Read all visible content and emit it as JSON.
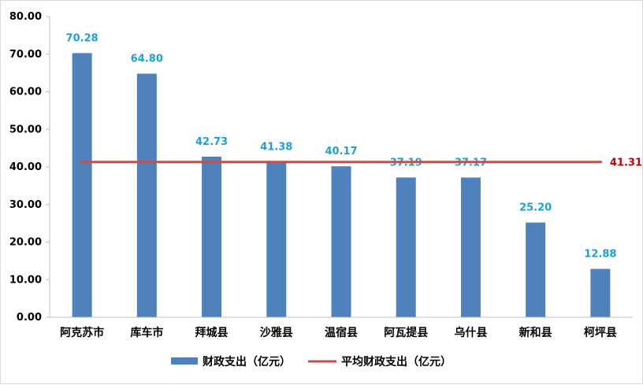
{
  "chart_data": {
    "type": "bar",
    "categories": [
      "阿克苏市",
      "库车市",
      "拜城县",
      "沙雅县",
      "温宿县",
      "阿瓦提县",
      "乌什县",
      "新和县",
      "柯坪县"
    ],
    "series": [
      {
        "name": "财政支出（亿元）",
        "type": "bar",
        "color": "#4f81bd",
        "values": [
          70.28,
          64.8,
          42.73,
          41.38,
          40.17,
          37.19,
          37.17,
          25.2,
          12.88
        ],
        "labels": [
          "70.28",
          "64.80",
          "42.73",
          "41.38",
          "40.17",
          "37.19",
          "37.17",
          "25.20",
          "12.88"
        ]
      },
      {
        "name": "平均财政支出（亿元）",
        "type": "line",
        "color": "#c0504d",
        "value": 41.31,
        "label": "41.31"
      }
    ],
    "ylim": [
      0,
      80
    ],
    "yticks": [
      "0.00",
      "10.00",
      "20.00",
      "30.00",
      "40.00",
      "50.00",
      "60.00",
      "70.00",
      "80.00"
    ],
    "grid": false,
    "legend": "bottom",
    "colors": {
      "data_label": "#1aa0d8",
      "avg_label": "#c00000"
    }
  }
}
